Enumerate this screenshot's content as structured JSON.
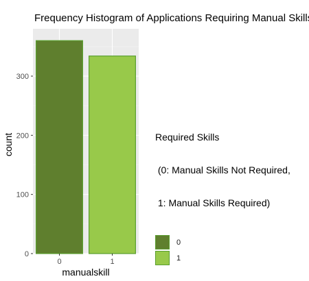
{
  "chart_data": {
    "type": "bar",
    "title": "Frequency Histogram of Applications Requiring Manual Skills",
    "xlabel": "manualskill",
    "ylabel": "count",
    "categories": [
      "0",
      "1"
    ],
    "values": [
      360,
      334
    ],
    "ylim": [
      0,
      380
    ],
    "yticks": [
      0,
      100,
      200,
      300
    ],
    "grid": true,
    "legend": {
      "title_lines": [
        "Required Skills",
        " (0: Manual Skills Not Required,",
        " 1: Manual Skills Required)"
      ],
      "placement": "right",
      "entries": [
        "0",
        "1"
      ]
    },
    "colors": {
      "series": [
        "#5f7f2e",
        "#98c94a"
      ],
      "outline": "#5a9e2f",
      "panel": "#ebebeb",
      "grid_major": "#ffffff",
      "grid_minor": "#f3f3f3"
    }
  }
}
